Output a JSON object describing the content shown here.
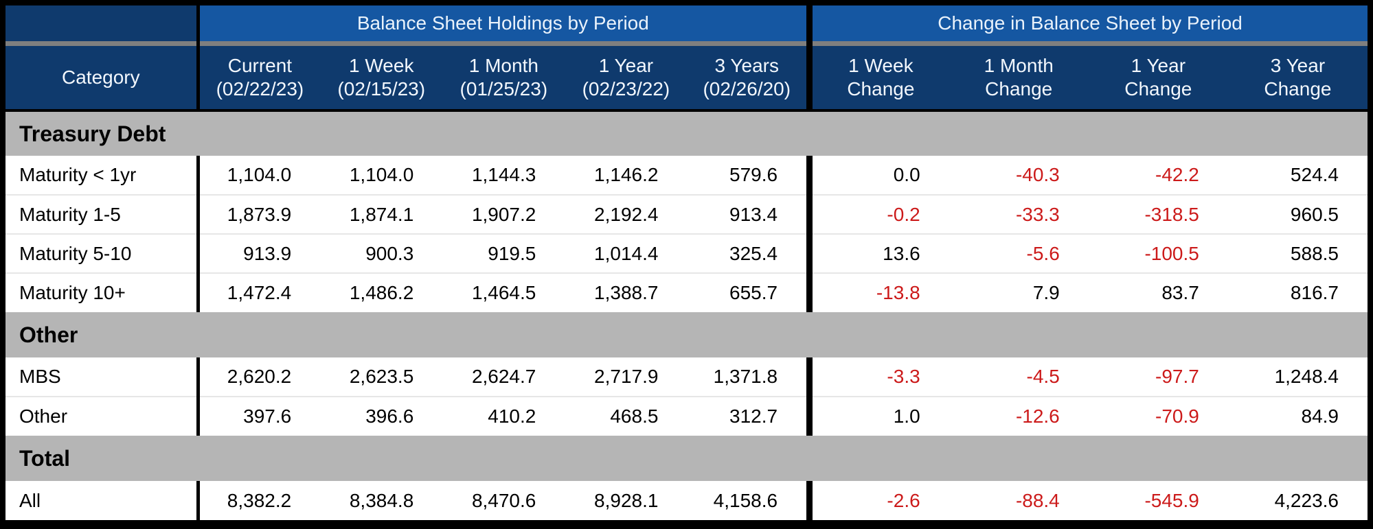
{
  "header": {
    "category_label": "Category",
    "group_left": "Balance Sheet Holdings by Period",
    "group_right": "Change in Balance Sheet by Period",
    "columns_left": [
      {
        "line1": "Current",
        "line2": "(02/22/23)"
      },
      {
        "line1": "1 Week",
        "line2": "(02/15/23)"
      },
      {
        "line1": "1 Month",
        "line2": "(01/25/23)"
      },
      {
        "line1": "1 Year",
        "line2": "(02/23/22)"
      },
      {
        "line1": "3 Years",
        "line2": "(02/26/20)"
      }
    ],
    "columns_right": [
      {
        "line1": "1 Week",
        "line2": "Change"
      },
      {
        "line1": "1 Month",
        "line2": "Change"
      },
      {
        "line1": "1 Year",
        "line2": "Change"
      },
      {
        "line1": "3 Year",
        "line2": "Change"
      }
    ]
  },
  "sections": [
    {
      "title": "Treasury Debt",
      "rows": [
        {
          "category": "Maturity < 1yr",
          "holdings": [
            "1,104.0",
            "1,104.0",
            "1,144.3",
            "1,146.2",
            "579.6"
          ],
          "changes": [
            "0.0",
            "-40.3",
            "-42.2",
            "524.4"
          ]
        },
        {
          "category": "Maturity 1-5",
          "holdings": [
            "1,873.9",
            "1,874.1",
            "1,907.2",
            "2,192.4",
            "913.4"
          ],
          "changes": [
            "-0.2",
            "-33.3",
            "-318.5",
            "960.5"
          ]
        },
        {
          "category": "Maturity 5-10",
          "holdings": [
            "913.9",
            "900.3",
            "919.5",
            "1,014.4",
            "325.4"
          ],
          "changes": [
            "13.6",
            "-5.6",
            "-100.5",
            "588.5"
          ]
        },
        {
          "category": "Maturity 10+",
          "holdings": [
            "1,472.4",
            "1,486.2",
            "1,464.5",
            "1,388.7",
            "655.7"
          ],
          "changes": [
            "-13.8",
            "7.9",
            "83.7",
            "816.7"
          ]
        }
      ]
    },
    {
      "title": "Other",
      "rows": [
        {
          "category": "MBS",
          "holdings": [
            "2,620.2",
            "2,623.5",
            "2,624.7",
            "2,717.9",
            "1,371.8"
          ],
          "changes": [
            "-3.3",
            "-4.5",
            "-97.7",
            "1,248.4"
          ]
        },
        {
          "category": "Other",
          "holdings": [
            "397.6",
            "396.6",
            "410.2",
            "468.5",
            "312.7"
          ],
          "changes": [
            "1.0",
            "-12.6",
            "-70.9",
            "84.9"
          ]
        }
      ]
    },
    {
      "title": "Total",
      "rows": [
        {
          "category": "All",
          "holdings": [
            "8,382.2",
            "8,384.8",
            "8,470.6",
            "8,928.1",
            "4,158.6"
          ],
          "changes": [
            "-2.6",
            "-88.4",
            "-545.9",
            "4,223.6"
          ]
        }
      ]
    }
  ],
  "colors": {
    "group_band_blue": "#1557a2",
    "header_navy": "#0f3a6d",
    "section_gray": "#b5b5b5",
    "divider_gray": "#7f7f7f",
    "negative_red": "#cc1a1a",
    "text_black": "#000000",
    "header_text": "#f2f7fd",
    "border_black": "#000000"
  },
  "chart_data": {
    "type": "table",
    "title": "",
    "column_groups": [
      "Balance Sheet Holdings by Period",
      "Change in Balance Sheet by Period"
    ],
    "columns": [
      "Category",
      "Current (02/22/23)",
      "1 Week (02/15/23)",
      "1 Month (01/25/23)",
      "1 Year (02/23/22)",
      "3 Years (02/26/20)",
      "1 Week Change",
      "1 Month Change",
      "1 Year Change",
      "3 Year Change"
    ],
    "sections": [
      {
        "title": "Treasury Debt",
        "rows": [
          [
            "Maturity < 1yr",
            1104.0,
            1104.0,
            1144.3,
            1146.2,
            579.6,
            0.0,
            -40.3,
            -42.2,
            524.4
          ],
          [
            "Maturity 1-5",
            1873.9,
            1874.1,
            1907.2,
            2192.4,
            913.4,
            -0.2,
            -33.3,
            -318.5,
            960.5
          ],
          [
            "Maturity 5-10",
            913.9,
            900.3,
            919.5,
            1014.4,
            325.4,
            13.6,
            -5.6,
            -100.5,
            588.5
          ],
          [
            "Maturity 10+",
            1472.4,
            1486.2,
            1464.5,
            1388.7,
            655.7,
            -13.8,
            7.9,
            83.7,
            816.7
          ]
        ]
      },
      {
        "title": "Other",
        "rows": [
          [
            "MBS",
            2620.2,
            2623.5,
            2624.7,
            2717.9,
            1371.8,
            -3.3,
            -4.5,
            -97.7,
            1248.4
          ],
          [
            "Other",
            397.6,
            396.6,
            410.2,
            468.5,
            312.7,
            1.0,
            -12.6,
            -70.9,
            84.9
          ]
        ]
      },
      {
        "title": "Total",
        "rows": [
          [
            "All",
            8382.2,
            8384.8,
            8470.6,
            8928.1,
            4158.6,
            -2.6,
            -88.4,
            -545.9,
            4223.6
          ]
        ]
      }
    ],
    "notes": "Negative change values rendered in red; holdings and positive changes in black."
  }
}
